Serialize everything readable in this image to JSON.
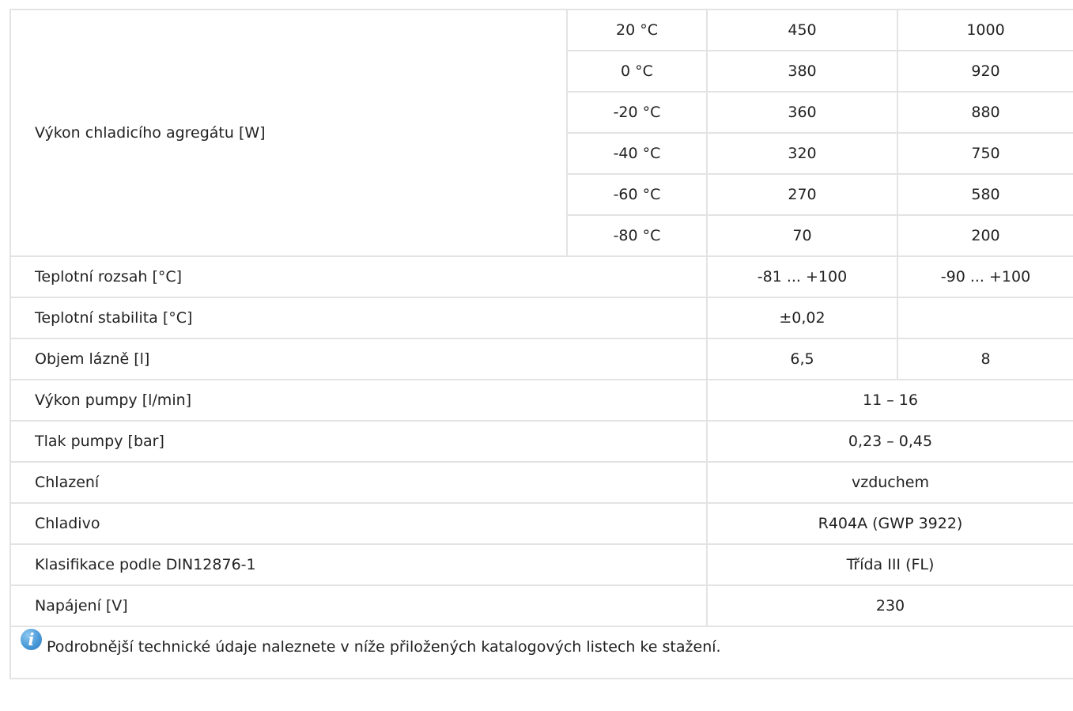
{
  "performance": {
    "label": "Výkon chladicího agregátu [W]",
    "rows": [
      {
        "temp": "20 °C",
        "a": "450",
        "b": "1000"
      },
      {
        "temp": "0 °C",
        "a": "380",
        "b": "920"
      },
      {
        "temp": "-20 °C",
        "a": "360",
        "b": "880"
      },
      {
        "temp": "-40 °C",
        "a": "320",
        "b": "750"
      },
      {
        "temp": "-60 °C",
        "a": "270",
        "b": "580"
      },
      {
        "temp": "-80 °C",
        "a": "70",
        "b": "200"
      }
    ]
  },
  "specs": {
    "temp_range": {
      "label": "Teplotní rozsah [°C]",
      "a": "-81 ... +100",
      "b": "-90 ... +100"
    },
    "temp_stability": {
      "label": "Teplotní stabilita [°C]",
      "a": "±0,02",
      "b": ""
    },
    "bath_volume": {
      "label": "Objem lázně [l]",
      "a": "6,5",
      "b": "8"
    },
    "pump_output": {
      "label": "Výkon pumpy [l/min]",
      "value": "11 – 16"
    },
    "pump_pressure": {
      "label": "Tlak pumpy [bar]",
      "value": "0,23 – 0,45"
    },
    "cooling": {
      "label": "Chlazení",
      "value": "vzduchem"
    },
    "refrigerant": {
      "label": "Chladivo",
      "value": "R404A (GWP 3922)"
    },
    "classification": {
      "label": "Klasifikace podle DIN12876-1",
      "value": "Třída III (FL)"
    },
    "power_supply": {
      "label": "Napájení [V]",
      "value": "230"
    }
  },
  "note": {
    "icon": "info-icon",
    "icon_glyph": "i",
    "icon_color": "#4a9ad8",
    "text": "Podrobnější technické údaje naleznete v níže přiložených katalogových listech ke stažení."
  }
}
